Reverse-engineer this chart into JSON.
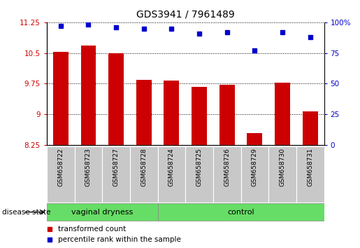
{
  "title": "GDS3941 / 7961489",
  "samples": [
    "GSM658722",
    "GSM658723",
    "GSM658727",
    "GSM658728",
    "GSM658724",
    "GSM658725",
    "GSM658726",
    "GSM658729",
    "GSM658730",
    "GSM658731"
  ],
  "transformed_count": [
    10.52,
    10.68,
    10.5,
    9.85,
    9.82,
    9.67,
    9.72,
    8.55,
    9.77,
    9.08
  ],
  "percentile_rank": [
    97,
    98,
    96,
    95,
    95,
    91,
    92,
    77,
    92,
    88
  ],
  "groups": [
    "vaginal dryness",
    "vaginal dryness",
    "vaginal dryness",
    "vaginal dryness",
    "control",
    "control",
    "control",
    "control",
    "control",
    "control"
  ],
  "bar_color": "#CC0000",
  "dot_color": "#0000CC",
  "green_color": "#66DD66",
  "gray_color": "#C8C8C8",
  "ylim_left": [
    8.25,
    11.25
  ],
  "ylim_right": [
    0,
    100
  ],
  "yticks_left": [
    8.25,
    9.0,
    9.75,
    10.5,
    11.25
  ],
  "ytick_labels_left": [
    "8.25",
    "9",
    "9.75",
    "10.5",
    "11.25"
  ],
  "yticks_right": [
    0,
    25,
    50,
    75,
    100
  ],
  "ytick_labels_right": [
    "0",
    "25",
    "50",
    "75",
    "100%"
  ],
  "n_vaginal": 4,
  "n_control": 6
}
